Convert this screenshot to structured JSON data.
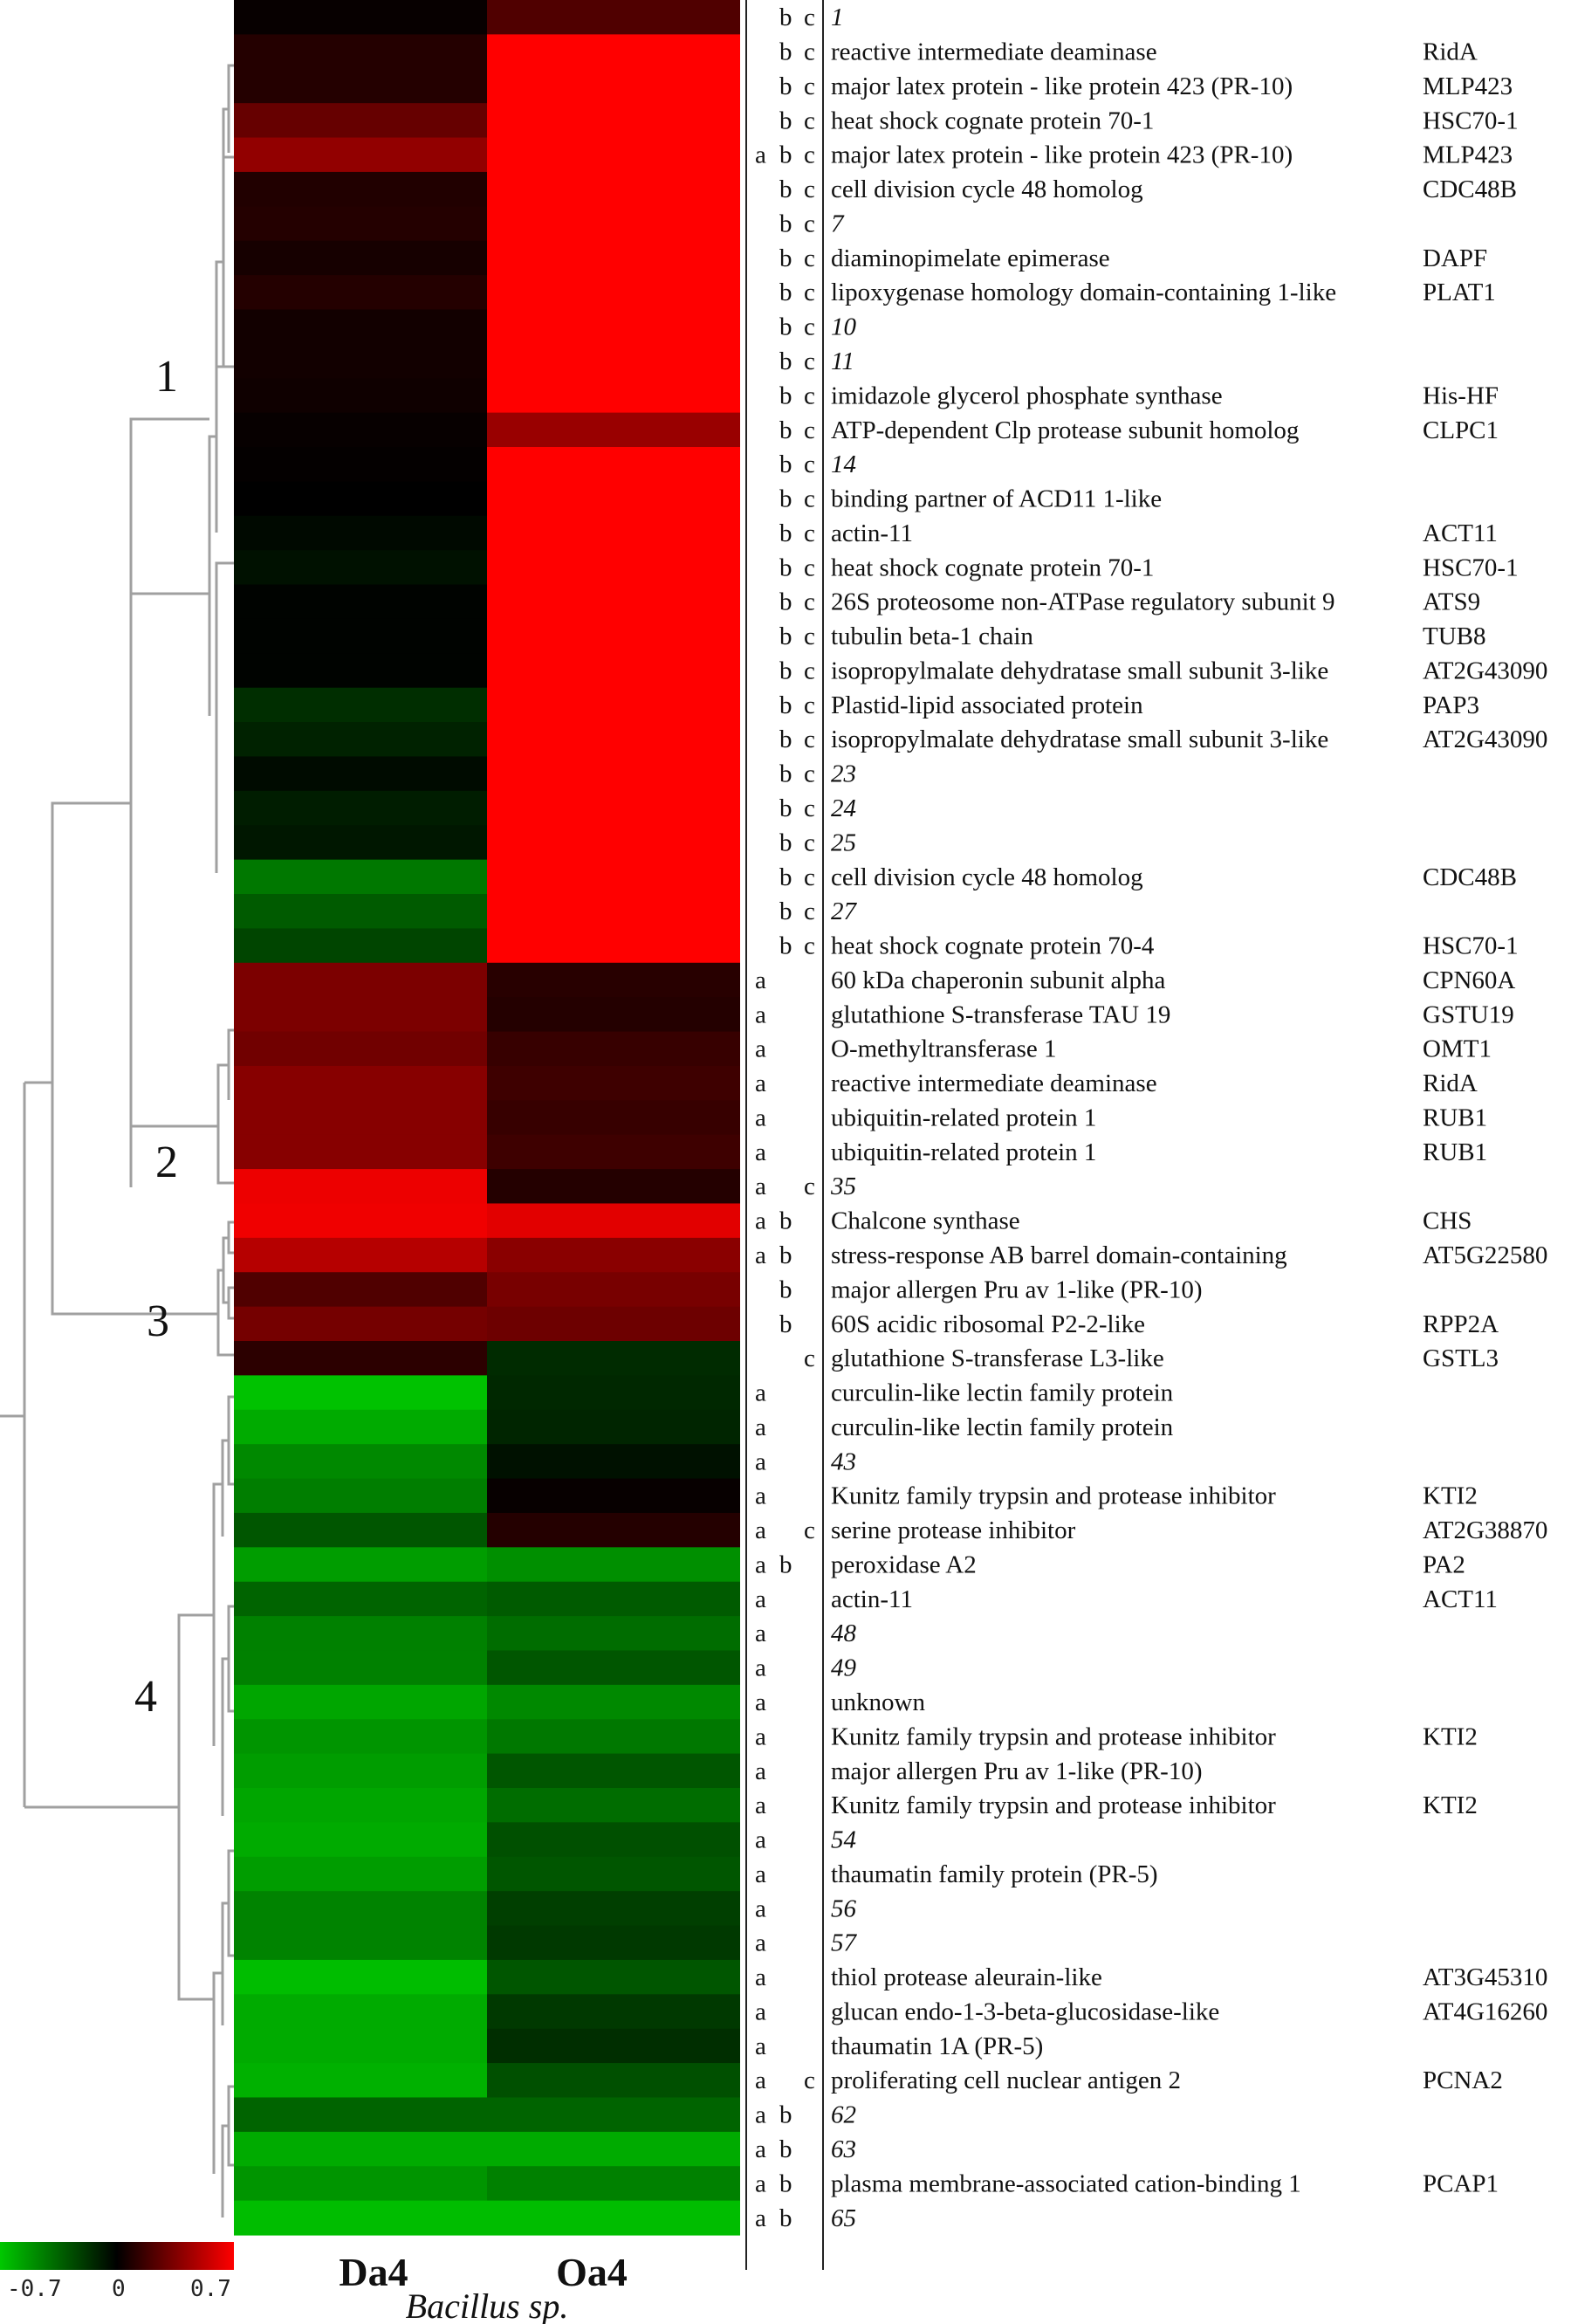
{
  "chart_data": {
    "type": "heatmap",
    "columns": [
      "Da4",
      "Oa4"
    ],
    "xlabel": "Bacillus sp.",
    "color_scale": {
      "min": -0.7,
      "mid": 0,
      "max": 0.7,
      "tick_labels": [
        "-0.7",
        "0",
        "0.7"
      ],
      "colors": {
        "low": "#00c800",
        "mid": "#000000",
        "high": "#ff0000"
      }
    },
    "cluster_labels": [
      "1",
      "2",
      "3",
      "4"
    ],
    "rows": [
      {
        "num": "1",
        "sig": "b c",
        "name": "",
        "gene": "",
        "values": [
          0.02,
          0.22
        ]
      },
      {
        "num": "2",
        "sig": "b c",
        "name": "reactive intermediate deaminase",
        "gene": "RidA",
        "values": [
          0.1,
          0.7
        ]
      },
      {
        "num": "3",
        "sig": "b c",
        "name": "major latex protein - like protein 423 (PR-10)",
        "gene": "MLP423",
        "values": [
          0.1,
          0.7
        ]
      },
      {
        "num": "4",
        "sig": "b c",
        "name": "heat shock cognate protein 70-1",
        "gene": "HSC70-1",
        "values": [
          0.28,
          0.7
        ]
      },
      {
        "num": "5",
        "sig": "a b c",
        "name": "major latex protein - like protein 423 (PR-10)",
        "gene": "MLP423",
        "values": [
          0.4,
          0.7
        ]
      },
      {
        "num": "6",
        "sig": "b c",
        "name": "cell division cycle 48 homolog",
        "gene": "CDC48B",
        "values": [
          0.09,
          0.7
        ]
      },
      {
        "num": "7",
        "sig": "b c",
        "name": "",
        "gene": "",
        "values": [
          0.1,
          0.7
        ]
      },
      {
        "num": "8",
        "sig": "b c",
        "name": "diaminopimelate epimerase",
        "gene": "DAPF",
        "values": [
          0.06,
          0.7
        ]
      },
      {
        "num": "9",
        "sig": "b c",
        "name": "lipoxygenase homology domain-containing 1-like",
        "gene": "PLAT1",
        "values": [
          0.1,
          0.7
        ]
      },
      {
        "num": "10",
        "sig": "b c",
        "name": "",
        "gene": "",
        "values": [
          0.05,
          0.7
        ]
      },
      {
        "num": "11",
        "sig": "b c",
        "name": "",
        "gene": "",
        "values": [
          0.05,
          0.7
        ]
      },
      {
        "num": "12",
        "sig": "b c",
        "name": "imidazole glycerol phosphate synthase",
        "gene": "His-HF",
        "values": [
          0.04,
          0.7
        ]
      },
      {
        "num": "13",
        "sig": "b c",
        "name": "ATP-dependent Clp protease subunit homolog",
        "gene": "CLPC1",
        "values": [
          0.02,
          0.42
        ]
      },
      {
        "num": "14",
        "sig": "b c",
        "name": "",
        "gene": "",
        "values": [
          0.01,
          0.7
        ]
      },
      {
        "num": "15",
        "sig": "b c",
        "name": "binding partner of ACD11 1-like",
        "gene": "",
        "values": [
          0.0,
          0.7
        ]
      },
      {
        "num": "16",
        "sig": "b c",
        "name": "actin-11",
        "gene": "ACT11",
        "values": [
          -0.03,
          0.7
        ]
      },
      {
        "num": "17",
        "sig": "b c",
        "name": "heat shock cognate protein 70-1",
        "gene": "HSC70-1",
        "values": [
          -0.06,
          0.7
        ]
      },
      {
        "num": "18",
        "sig": "b c",
        "name": "26S proteosome non-ATPase regulatory subunit 9",
        "gene": "ATS9",
        "values": [
          -0.01,
          0.7
        ]
      },
      {
        "num": "19",
        "sig": "b c",
        "name": "tubulin beta-1 chain",
        "gene": "TUB8",
        "values": [
          -0.01,
          0.7
        ]
      },
      {
        "num": "20",
        "sig": "b c",
        "name": "isopropylmalate dehydratase small subunit 3-like",
        "gene": "AT2G43090",
        "values": [
          -0.01,
          0.7
        ]
      },
      {
        "num": "21",
        "sig": "b c",
        "name": "Plastid-lipid associated protein",
        "gene": "PAP3",
        "values": [
          -0.16,
          0.7
        ]
      },
      {
        "num": "22",
        "sig": "b c",
        "name": "isopropylmalate dehydratase small subunit 3-like",
        "gene": "AT2G43090",
        "values": [
          -0.12,
          0.7
        ]
      },
      {
        "num": "23",
        "sig": "b c",
        "name": "",
        "gene": "",
        "values": [
          -0.04,
          0.7
        ]
      },
      {
        "num": "24",
        "sig": "b c",
        "name": "",
        "gene": "",
        "values": [
          -0.1,
          0.7
        ]
      },
      {
        "num": "25",
        "sig": "b c",
        "name": "",
        "gene": "",
        "values": [
          -0.08,
          0.7
        ]
      },
      {
        "num": "26",
        "sig": "b c",
        "name": "cell division cycle 48 homolog",
        "gene": "CDC48B",
        "values": [
          -0.42,
          0.7
        ]
      },
      {
        "num": "27",
        "sig": "b c",
        "name": "",
        "gene": "",
        "values": [
          -0.32,
          0.7
        ]
      },
      {
        "num": "28",
        "sig": "b c",
        "name": "heat shock cognate protein 70-4",
        "gene": "HSC70-1",
        "values": [
          -0.24,
          0.7
        ]
      },
      {
        "num": "29",
        "sig": "a",
        "name": "60 kDa chaperonin subunit alpha",
        "gene": "CPN60A",
        "values": [
          0.34,
          0.11
        ]
      },
      {
        "num": "30",
        "sig": "a",
        "name": "glutathione S-transferase TAU 19",
        "gene": "GSTU19",
        "values": [
          0.34,
          0.1
        ]
      },
      {
        "num": "31",
        "sig": "a",
        "name": "O-methyltransferase 1",
        "gene": "OMT1",
        "values": [
          0.31,
          0.15
        ]
      },
      {
        "num": "32",
        "sig": "a",
        "name": "reactive intermediate deaminase",
        "gene": "RidA",
        "values": [
          0.37,
          0.17
        ]
      },
      {
        "num": "33",
        "sig": "a",
        "name": "ubiquitin-related protein 1",
        "gene": "RUB1",
        "values": [
          0.37,
          0.15
        ]
      },
      {
        "num": "34",
        "sig": "a",
        "name": "ubiquitin-related protein 1",
        "gene": "RUB1",
        "values": [
          0.37,
          0.17
        ]
      },
      {
        "num": "35",
        "sig": "a c",
        "name": "",
        "gene": "",
        "values": [
          0.65,
          0.1
        ]
      },
      {
        "num": "36",
        "sig": "a b",
        "name": "Chalcone synthase",
        "gene": "CHS",
        "values": [
          0.66,
          0.62
        ]
      },
      {
        "num": "37",
        "sig": "a b",
        "name": "stress-response AB barrel domain-containing",
        "gene": "AT5G22580",
        "values": [
          0.5,
          0.38
        ]
      },
      {
        "num": "38",
        "sig": "b",
        "name": "major allergen Pru av 1-like (PR-10)",
        "gene": "",
        "values": [
          0.22,
          0.33
        ]
      },
      {
        "num": "39",
        "sig": "b",
        "name": "60S acidic ribosomal P2-2-like",
        "gene": "RPP2A",
        "values": [
          0.32,
          0.3
        ]
      },
      {
        "num": "40",
        "sig": "c",
        "name": "glutathione S-transferase L3-like",
        "gene": "GSTL3",
        "values": [
          0.12,
          -0.15
        ]
      },
      {
        "num": "41",
        "sig": "a",
        "name": "curculin-like lectin family protein",
        "gene": "",
        "values": [
          -0.68,
          -0.14
        ]
      },
      {
        "num": "42",
        "sig": "a",
        "name": "curculin-like lectin family protein",
        "gene": "",
        "values": [
          -0.6,
          -0.13
        ]
      },
      {
        "num": "43",
        "sig": "a",
        "name": "",
        "gene": "",
        "values": [
          -0.48,
          -0.06
        ]
      },
      {
        "num": "44",
        "sig": "a",
        "name": "Kunitz family trypsin and protease inhibitor",
        "gene": "KTI2",
        "values": [
          -0.44,
          0.02
        ]
      },
      {
        "num": "45",
        "sig": "a c",
        "name": "serine protease inhibitor",
        "gene": "AT2G38870",
        "values": [
          -0.3,
          0.1
        ]
      },
      {
        "num": "46",
        "sig": "a b",
        "name": "peroxidase A2",
        "gene": "PA2",
        "values": [
          -0.55,
          -0.5
        ]
      },
      {
        "num": "47",
        "sig": "a",
        "name": "actin-11",
        "gene": "ACT11",
        "values": [
          -0.35,
          -0.32
        ]
      },
      {
        "num": "48",
        "sig": "a",
        "name": "",
        "gene": "",
        "values": [
          -0.45,
          -0.38
        ]
      },
      {
        "num": "49",
        "sig": "a",
        "name": "",
        "gene": "",
        "values": [
          -0.45,
          -0.3
        ]
      },
      {
        "num": "50",
        "sig": "a",
        "name": "unknown",
        "gene": "",
        "values": [
          -0.58,
          -0.48
        ]
      },
      {
        "num": "51",
        "sig": "a",
        "name": "Kunitz family trypsin and protease inhibitor",
        "gene": "KTI2",
        "values": [
          -0.52,
          -0.42
        ]
      },
      {
        "num": "52",
        "sig": "a",
        "name": "major allergen Pru av 1-like (PR-10)",
        "gene": "",
        "values": [
          -0.55,
          -0.3
        ]
      },
      {
        "num": "53",
        "sig": "a",
        "name": "Kunitz family trypsin and protease inhibitor",
        "gene": "KTI2",
        "values": [
          -0.58,
          -0.38
        ]
      },
      {
        "num": "54",
        "sig": "a",
        "name": "",
        "gene": "",
        "values": [
          -0.6,
          -0.28
        ]
      },
      {
        "num": "55",
        "sig": "a",
        "name": "thaumatin family protein (PR-5)",
        "gene": "",
        "values": [
          -0.55,
          -0.3
        ]
      },
      {
        "num": "56",
        "sig": "a",
        "name": "",
        "gene": "",
        "values": [
          -0.46,
          -0.22
        ]
      },
      {
        "num": "57",
        "sig": "a",
        "name": "",
        "gene": "",
        "values": [
          -0.46,
          -0.2
        ]
      },
      {
        "num": "58",
        "sig": "a",
        "name": "thiol protease aleurain-like",
        "gene": "AT3G45310",
        "values": [
          -0.66,
          -0.3
        ]
      },
      {
        "num": "59",
        "sig": "a",
        "name": "glucan endo-1-3-beta-glucosidase-like",
        "gene": "AT4G16260",
        "values": [
          -0.6,
          -0.2
        ]
      },
      {
        "num": "60",
        "sig": "a",
        "name": "thaumatin 1A (PR-5)",
        "gene": "",
        "values": [
          -0.6,
          -0.16
        ]
      },
      {
        "num": "61",
        "sig": "a c",
        "name": "proliferating cell nuclear antigen 2",
        "gene": "PCNA2",
        "values": [
          -0.62,
          -0.28
        ]
      },
      {
        "num": "62",
        "sig": "a b",
        "name": "",
        "gene": "",
        "values": [
          -0.35,
          -0.35
        ]
      },
      {
        "num": "63",
        "sig": "a b",
        "name": "",
        "gene": "",
        "values": [
          -0.6,
          -0.6
        ]
      },
      {
        "num": "64",
        "sig": "a b",
        "name": "plasma membrane-associated cation-binding 1",
        "gene": "PCAP1",
        "values": [
          -0.52,
          -0.45
        ]
      },
      {
        "num": "65",
        "sig": "a b",
        "name": "",
        "gene": "",
        "values": [
          -0.66,
          -0.66
        ]
      }
    ]
  }
}
